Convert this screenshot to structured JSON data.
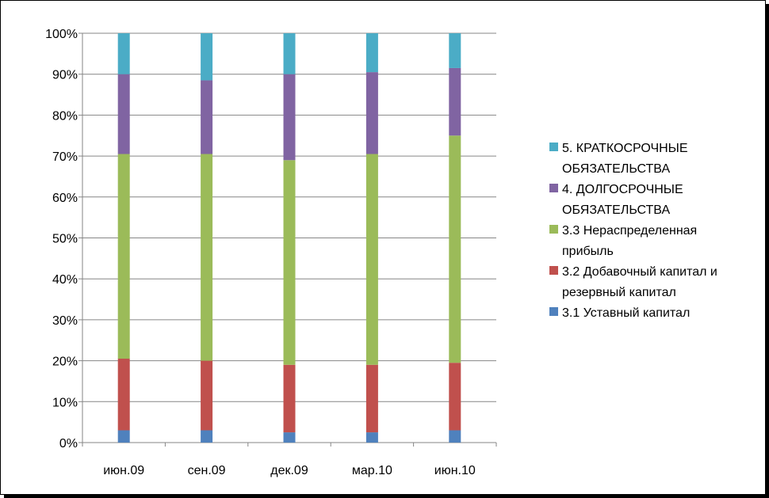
{
  "chart_data": {
    "type": "bar",
    "stacked": "percent",
    "categories": [
      "июн.09",
      "сен.09",
      "дек.09",
      "мар.10",
      "июн.10"
    ],
    "y_ticks": [
      "0%",
      "10%",
      "20%",
      "30%",
      "40%",
      "50%",
      "60%",
      "70%",
      "80%",
      "90%",
      "100%"
    ],
    "ylim": [
      0,
      100
    ],
    "grid": true,
    "legend_position": "right",
    "series": [
      {
        "name": "3.1 Уставный капитал",
        "legend_lines": [
          "3.1 Уставный капитал"
        ],
        "color": "#4F81BD",
        "values": [
          3,
          3,
          2.5,
          2.5,
          3
        ]
      },
      {
        "name": "3.2 Добавочный капитал и резервный капитал",
        "legend_lines": [
          "3.2 Добавочный капитал и",
          "резервный капитал"
        ],
        "color": "#C0504D",
        "values": [
          17.5,
          17,
          16.5,
          16.5,
          16.5
        ]
      },
      {
        "name": "3.3 Нераспределенная прибыль",
        "legend_lines": [
          "3.3 Нераспределенная",
          "прибыль"
        ],
        "color": "#9BBB59",
        "values": [
          50,
          50.5,
          50,
          51.5,
          55.5
        ]
      },
      {
        "name": "4. ДОЛГОСРОЧНЫЕ ОБЯЗАТЕЛЬСТВА",
        "legend_lines": [
          "4. ДОЛГОСРОЧНЫЕ",
          "ОБЯЗАТЕЛЬСТВА"
        ],
        "color": "#8064A2",
        "values": [
          19.5,
          18,
          21,
          20,
          16.5
        ]
      },
      {
        "name": "5. КРАТКОСРОЧНЫЕ ОБЯЗАТЕЛЬСТВА",
        "legend_lines": [
          "5. КРАТКОСРОЧНЫЕ",
          "ОБЯЗАТЕЛЬСТВА"
        ],
        "color": "#4BACC6",
        "values": [
          10,
          11.5,
          10,
          9.5,
          8.5
        ]
      }
    ]
  }
}
